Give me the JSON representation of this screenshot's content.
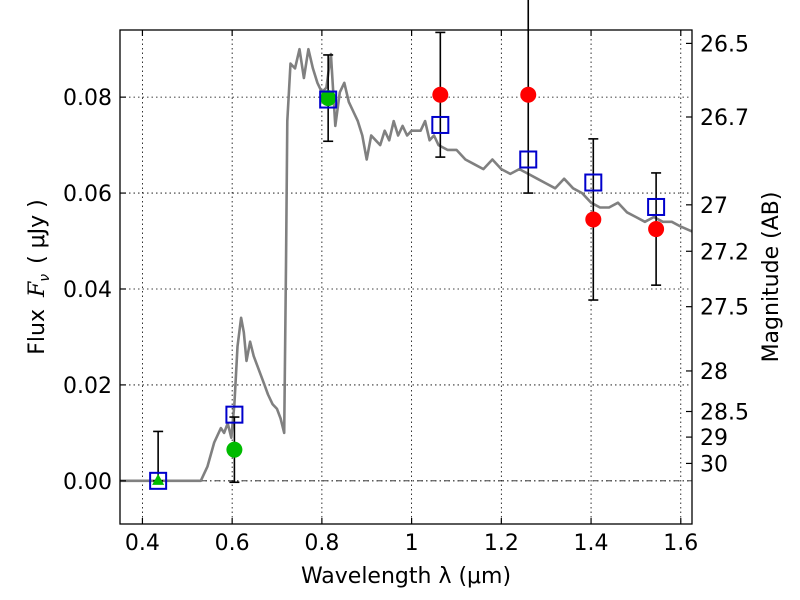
{
  "chart_data": {
    "type": "scatter",
    "xlabel": "Wavelength  λ (μm)",
    "ylabel_prefix": "Flux",
    "ylabel_symbol": "F",
    "ylabel_subscript": "ν",
    "ylabel_unit": "( μJy )",
    "y2label": "Magnitude (AB)",
    "xlim": [
      0.35,
      1.625
    ],
    "ylim": [
      -0.009,
      0.094
    ],
    "xticks": [
      0.4,
      0.6,
      0.8,
      1.0,
      1.2,
      1.4,
      1.6
    ],
    "xtick_labels": [
      "0.4",
      "0.6",
      "0.8",
      "1",
      "1.2",
      "1.4",
      "1.6"
    ],
    "yticks": [
      0.0,
      0.02,
      0.04,
      0.06,
      0.08
    ],
    "ytick_labels": [
      "0.00",
      "0.02",
      "0.04",
      "0.06",
      "0.08"
    ],
    "magnitude_ticks": [
      26.5,
      26.7,
      27,
      27.2,
      27.5,
      28,
      28.5,
      29,
      30
    ],
    "magnitude_tick_labels": [
      "26.5",
      "26.7",
      "27",
      "27.2",
      "27.5",
      "28",
      "28.5",
      "29",
      "30"
    ],
    "grid": true,
    "model_sed": {
      "color": "#808080",
      "x": [
        0.35,
        0.53,
        0.545,
        0.56,
        0.575,
        0.582,
        0.59,
        0.598,
        0.605,
        0.612,
        0.62,
        0.626,
        0.632,
        0.64,
        0.648,
        0.656,
        0.664,
        0.672,
        0.68,
        0.69,
        0.7,
        0.708,
        0.716,
        0.72,
        0.723,
        0.73,
        0.74,
        0.75,
        0.76,
        0.77,
        0.78,
        0.79,
        0.8,
        0.81,
        0.82,
        0.83,
        0.84,
        0.85,
        0.86,
        0.87,
        0.88,
        0.89,
        0.9,
        0.91,
        0.92,
        0.93,
        0.94,
        0.95,
        0.96,
        0.97,
        0.98,
        0.99,
        1.0,
        1.01,
        1.02,
        1.03,
        1.04,
        1.05,
        1.06,
        1.08,
        1.1,
        1.12,
        1.14,
        1.16,
        1.18,
        1.2,
        1.22,
        1.24,
        1.26,
        1.28,
        1.3,
        1.32,
        1.34,
        1.36,
        1.38,
        1.4,
        1.42,
        1.44,
        1.46,
        1.48,
        1.5,
        1.52,
        1.54,
        1.56,
        1.58,
        1.6,
        1.625
      ],
      "y": [
        0.0,
        0.0,
        0.003,
        0.008,
        0.011,
        0.01,
        0.012,
        0.009,
        0.016,
        0.028,
        0.034,
        0.031,
        0.025,
        0.029,
        0.026,
        0.024,
        0.022,
        0.02,
        0.018,
        0.016,
        0.015,
        0.013,
        0.01,
        0.045,
        0.075,
        0.087,
        0.086,
        0.09,
        0.084,
        0.09,
        0.086,
        0.083,
        0.081,
        0.082,
        0.089,
        0.074,
        0.081,
        0.083,
        0.079,
        0.077,
        0.075,
        0.072,
        0.067,
        0.072,
        0.071,
        0.07,
        0.073,
        0.071,
        0.075,
        0.072,
        0.074,
        0.072,
        0.073,
        0.073,
        0.073,
        0.075,
        0.071,
        0.072,
        0.07,
        0.069,
        0.069,
        0.067,
        0.066,
        0.065,
        0.067,
        0.065,
        0.064,
        0.065,
        0.064,
        0.063,
        0.062,
        0.061,
        0.063,
        0.061,
        0.06,
        0.058,
        0.057,
        0.057,
        0.058,
        0.056,
        0.055,
        0.054,
        0.055,
        0.054,
        0.054,
        0.053,
        0.052
      ]
    },
    "series": [
      {
        "marker": "square",
        "color": "#0000cc",
        "x": [
          0.435,
          0.605,
          0.814,
          1.064,
          1.26,
          1.405,
          1.545
        ],
        "y": [
          0.0,
          0.0138,
          0.0795,
          0.0742,
          0.067,
          0.0622,
          0.0571
        ]
      },
      {
        "marker": "circle",
        "color": "#ff0000",
        "x": [
          1.064,
          1.26,
          1.405,
          1.545
        ],
        "y": [
          0.0805,
          0.0805,
          0.0545,
          0.0525
        ],
        "yerr": [
          0.013,
          0.0205,
          0.0168,
          0.0117
        ]
      },
      {
        "marker": "circle",
        "color": "#00bb00",
        "x": [
          0.605,
          0.814
        ],
        "y": [
          0.0065,
          0.0798
        ],
        "yerr": [
          0.0068,
          0.009
        ]
      },
      {
        "marker": "triangle",
        "color": "#00bb00",
        "x": [
          0.435
        ],
        "y": [
          0.0
        ],
        "yerr_up": [
          0.0103
        ]
      }
    ]
  }
}
